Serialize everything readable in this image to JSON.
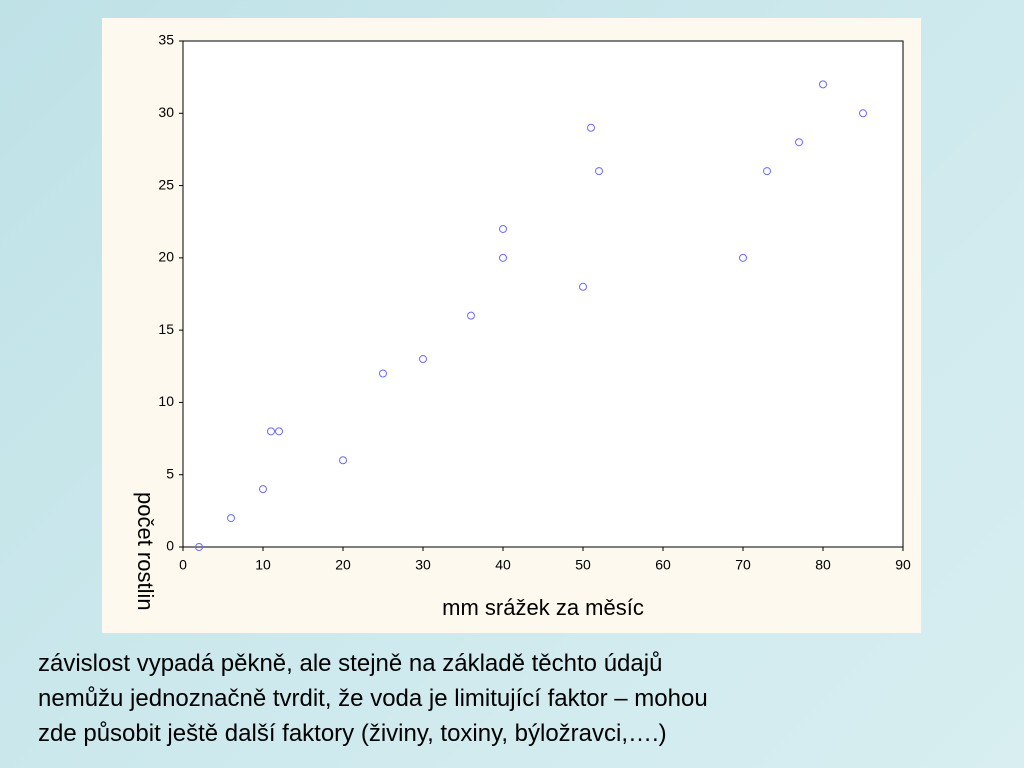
{
  "chart_data": {
    "type": "scatter",
    "xlabel": "mm srážek za měsíc",
    "ylabel": "počet rostlin",
    "x": [
      2,
      6,
      10,
      11,
      12,
      20,
      25,
      30,
      36,
      40,
      40,
      50,
      51,
      52,
      70,
      73,
      77,
      80,
      85
    ],
    "values": [
      0,
      2,
      4,
      8,
      8,
      6,
      12,
      13,
      16,
      20,
      22,
      18,
      29,
      26,
      20,
      26,
      28,
      32,
      30
    ],
    "color": "#6b6bff",
    "xlim": [
      0,
      90
    ],
    "xticks": [
      0,
      10,
      20,
      30,
      40,
      50,
      60,
      70,
      80,
      90
    ],
    "ylim": [
      0,
      35
    ],
    "yticks": [
      0,
      5,
      10,
      15,
      20,
      25,
      30,
      35
    ]
  },
  "text": {
    "lines": [
      "závislost vypadá pěkně, ale stejně na základě těchto údajů",
      "nemůžu jednoznačně tvrdit, že voda je limitující faktor – mohou",
      "zde působit ještě další faktory (živiny, toxiny, býložravci,….)"
    ]
  }
}
